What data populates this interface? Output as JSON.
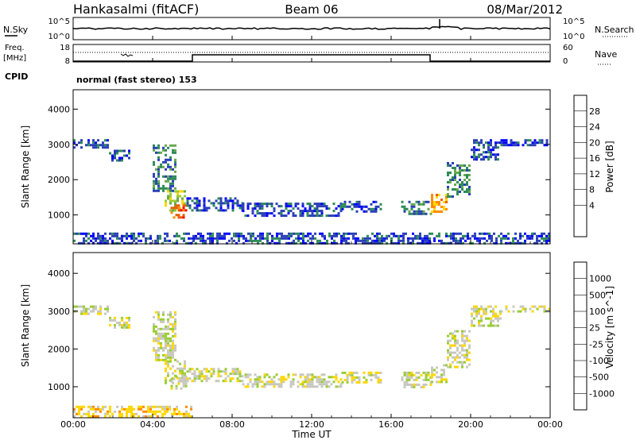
{
  "header": {
    "station": "Hankasalmi (fitACF)",
    "beam": "Beam 06",
    "date": "08/Mar/2012"
  },
  "noise_panel": {
    "left_label": "N.Sky",
    "right_label": "N.Search",
    "left_ticks": [
      "10^5",
      "10^0"
    ],
    "right_ticks": [
      "10^5",
      "10^0"
    ]
  },
  "freq_panel": {
    "left_label_line1": "Freq.",
    "left_label_line2": "[MHz]",
    "left_ticks": [
      "18",
      "8"
    ],
    "right_label": "Nave",
    "right_ticks": [
      "60",
      "0"
    ]
  },
  "cpid": {
    "label": "CPID",
    "value": "normal (fast stereo) 153"
  },
  "time_axis": {
    "title": "Time UT",
    "ticks": [
      "00:00",
      "04:00",
      "08:00",
      "12:00",
      "16:00",
      "20:00",
      "00:00"
    ]
  },
  "chart_data": [
    {
      "type": "heatmap",
      "panel": "power",
      "ylabel": "Slant Range [km]",
      "yticks": [
        1000,
        2000,
        3000,
        4000
      ],
      "ylim": [
        180,
        4550
      ],
      "xlim_hours": [
        0,
        24
      ],
      "colorbar": {
        "label": "Power [dB]",
        "ticks": [
          "28",
          "24",
          "20",
          "16",
          "12",
          "8",
          "4"
        ],
        "colors": [
          "#0000ff",
          "#2a3fb8",
          "#2e8b57",
          "#6aa84f",
          "#9acd32",
          "#ffd700",
          "#ff8c00",
          "#e85c00",
          "#ff0000"
        ]
      },
      "bands": [
        {
          "hours": [
            0.0,
            1.8
          ],
          "range_km": [
            2900,
            3150
          ],
          "level": 1
        },
        {
          "hours": [
            1.8,
            2.8
          ],
          "range_km": [
            2550,
            2850
          ],
          "level": 1
        },
        {
          "hours": [
            4.0,
            5.2
          ],
          "range_km": [
            1700,
            3000
          ],
          "level": 2
        },
        {
          "hours": [
            4.6,
            5.6
          ],
          "range_km": [
            1100,
            1700
          ],
          "level": 4
        },
        {
          "hours": [
            4.9,
            5.7
          ],
          "range_km": [
            950,
            1300
          ],
          "level": 7
        },
        {
          "hours": [
            5.7,
            8.5
          ],
          "range_km": [
            1150,
            1500
          ],
          "level": 1
        },
        {
          "hours": [
            8.5,
            13.5
          ],
          "range_km": [
            1000,
            1350
          ],
          "level": 1
        },
        {
          "hours": [
            13.5,
            15.5
          ],
          "range_km": [
            1100,
            1400
          ],
          "level": 1
        },
        {
          "hours": [
            16.5,
            18.0
          ],
          "range_km": [
            1000,
            1400
          ],
          "level": 2
        },
        {
          "hours": [
            18.0,
            18.8
          ],
          "range_km": [
            1100,
            1600
          ],
          "level": 6
        },
        {
          "hours": [
            18.8,
            20.0
          ],
          "range_km": [
            1500,
            2500
          ],
          "level": 2
        },
        {
          "hours": [
            20.0,
            21.5
          ],
          "range_km": [
            2600,
            3150
          ],
          "level": 1
        },
        {
          "hours": [
            21.5,
            24.0
          ],
          "range_km": [
            3000,
            3150
          ],
          "level": 1
        },
        {
          "hours": [
            0.0,
            24.0
          ],
          "range_km": [
            200,
            500
          ],
          "level": 1
        }
      ]
    },
    {
      "type": "heatmap",
      "panel": "velocity",
      "ylabel": "Slant Range [km]",
      "yticks": [
        1000,
        2000,
        3000,
        4000
      ],
      "ylim": [
        180,
        4550
      ],
      "xlim_hours": [
        0,
        24
      ],
      "colorbar": {
        "label": "Velocity [m s^-1]",
        "ticks": [
          "1000",
          "500",
          "100",
          "25",
          "-25",
          "-100",
          "-500",
          "-1000"
        ],
        "colors": [
          "#ff0000",
          "#e85c00",
          "#ff8c00",
          "#ffd700",
          "#c8c8c0",
          "#9acd32",
          "#2e8b57",
          "#2a3fb8",
          "#0000ff"
        ]
      },
      "bands": [
        {
          "hours": [
            0.0,
            1.8
          ],
          "range_km": [
            2900,
            3150
          ],
          "level": 4
        },
        {
          "hours": [
            1.8,
            2.8
          ],
          "range_km": [
            2550,
            2850
          ],
          "level": 4
        },
        {
          "hours": [
            4.0,
            5.2
          ],
          "range_km": [
            1700,
            3000
          ],
          "level": 4
        },
        {
          "hours": [
            4.6,
            5.6
          ],
          "range_km": [
            1100,
            1700
          ],
          "level": 4
        },
        {
          "hours": [
            4.9,
            5.7
          ],
          "range_km": [
            950,
            1300
          ],
          "level": 4
        },
        {
          "hours": [
            5.7,
            8.5
          ],
          "range_km": [
            1150,
            1500
          ],
          "level": 4
        },
        {
          "hours": [
            8.5,
            13.5
          ],
          "range_km": [
            1000,
            1350
          ],
          "level": 4
        },
        {
          "hours": [
            13.5,
            15.5
          ],
          "range_km": [
            1100,
            1400
          ],
          "level": 4
        },
        {
          "hours": [
            16.5,
            18.0
          ],
          "range_km": [
            1000,
            1400
          ],
          "level": 4
        },
        {
          "hours": [
            18.0,
            18.8
          ],
          "range_km": [
            1100,
            1600
          ],
          "level": 4
        },
        {
          "hours": [
            18.8,
            20.0
          ],
          "range_km": [
            1500,
            2500
          ],
          "level": 4
        },
        {
          "hours": [
            20.0,
            21.5
          ],
          "range_km": [
            2600,
            3150
          ],
          "level": 4
        },
        {
          "hours": [
            21.5,
            24.0
          ],
          "range_km": [
            3000,
            3150
          ],
          "level": 4
        },
        {
          "hours": [
            0.0,
            6.0
          ],
          "range_km": [
            200,
            500
          ],
          "level": 3
        }
      ]
    }
  ]
}
